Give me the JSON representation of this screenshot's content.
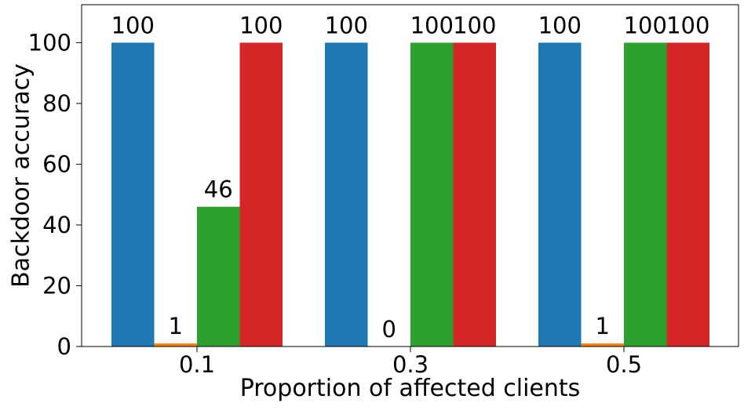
{
  "chart_data": {
    "type": "bar",
    "title": "",
    "xlabel": "Proportion of affected clients",
    "ylabel": "Backdoor accuracy",
    "categories": [
      "0.1",
      "0.3",
      "0.5"
    ],
    "ylim": [
      0,
      112.5
    ],
    "yticks": [
      0,
      20,
      40,
      60,
      80,
      100
    ],
    "grid": false,
    "legend": "none",
    "series": [
      {
        "color": "#1f77b4",
        "values": [
          100,
          100,
          100
        ],
        "labels": [
          "100",
          "100",
          "100"
        ]
      },
      {
        "color": "#ff7f0e",
        "values": [
          1,
          0,
          1
        ],
        "labels": [
          "1",
          "0",
          "1"
        ]
      },
      {
        "color": "#2ca02c",
        "values": [
          46,
          100,
          100
        ],
        "labels": [
          "46",
          "100",
          "100"
        ]
      },
      {
        "color": "#d62728",
        "values": [
          100,
          100,
          100
        ],
        "labels": [
          "100",
          "100",
          "100"
        ]
      }
    ]
  }
}
